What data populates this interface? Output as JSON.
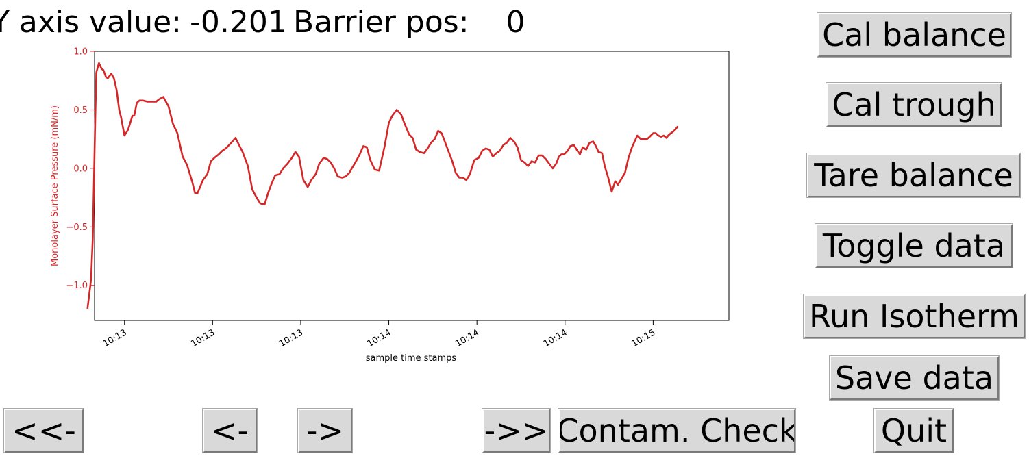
{
  "header": {
    "y_axis_label": "Y axis value:",
    "y_axis_value": "-0.201",
    "barrier_label": "Barrier pos:",
    "barrier_value": "0"
  },
  "buttons": {
    "cal_balance": "Cal balance",
    "cal_trough": "Cal trough",
    "tare_balance": "Tare balance",
    "toggle_data": "Toggle data",
    "run_isotherm": "Run Isotherm",
    "save_data": "Save data",
    "quit": "Quit",
    "first": "<<-",
    "prev": "<-",
    "next": "->",
    "last": "->>",
    "contam_check": "Contam. Check"
  },
  "colors": {
    "series": "#d62728",
    "button_bg": "#d9d9d9"
  },
  "chart_data": {
    "type": "line",
    "xlabel": "sample time stamps",
    "ylabel": "Monolayer Surface Pressure (mN/m)",
    "ylim": [
      -1.3,
      1.0
    ],
    "yticks": [
      1.0,
      0.5,
      0.0,
      -0.5,
      -1.0
    ],
    "ytick_labels": [
      "1.0",
      "0.5",
      "0.0",
      "−0.5",
      "−1.0"
    ],
    "xlim": [
      -3.4,
      68.6
    ],
    "xticks": [
      0,
      10,
      20,
      30,
      40,
      50,
      60
    ],
    "xtick_labels": [
      "10:13",
      "10:13",
      "10:13",
      "10:14",
      "10:14",
      "10:14",
      "10:15"
    ],
    "grid": false,
    "series": [
      {
        "x": [
          -4.2,
          -3.8,
          -3.6,
          -3.3,
          -3.2,
          -2.9,
          -2.6,
          -2.4,
          -2.1,
          -1.9,
          -1.5,
          -1.2,
          -0.9,
          -0.6,
          -0.4,
          0,
          0.4,
          0.9,
          1.1,
          1.4,
          1.7,
          2.1,
          2.6,
          3.0,
          3.6,
          3.9,
          4.4,
          5.0,
          5.5,
          6.0,
          6.6,
          7.1,
          7.7,
          8.0,
          8.3,
          8.9,
          9.4,
          9.8,
          10.2,
          10.7,
          11.1,
          11.5,
          12.0,
          12.6,
          13.0,
          13.4,
          14.0,
          14.5,
          15.0,
          15.4,
          15.9,
          16.3,
          16.7,
          17.1,
          17.6,
          18.0,
          18.5,
          19.0,
          19.4,
          19.8,
          20.3,
          20.8,
          21.2,
          21.7,
          22.1,
          22.6,
          23.0,
          23.4,
          23.8,
          24.2,
          24.7,
          25.1,
          25.5,
          25.8,
          26.2,
          26.7,
          27.1,
          27.5,
          27.9,
          28.4,
          28.9,
          29.5,
          30.0,
          30.4,
          30.9,
          31.4,
          31.8,
          32.3,
          32.7,
          33.1,
          33.5,
          34.0,
          34.4,
          34.8,
          35.2,
          35.6,
          36.0,
          36.4,
          36.8,
          37.2,
          37.6,
          38.0,
          38.4,
          38.8,
          39.2,
          39.7,
          40.2,
          40.6,
          41.0,
          41.4,
          41.8,
          42.2,
          42.6,
          43.0,
          43.4,
          43.8,
          44.2,
          44.6,
          45.0,
          45.4,
          45.8,
          46.2,
          46.6,
          47.0,
          47.4,
          47.8,
          48.2,
          48.6,
          49.0,
          49.3,
          49.6,
          49.9,
          50.3,
          50.6,
          51.0,
          51.4,
          51.7,
          52.0,
          52.4,
          52.8,
          53.2,
          53.5,
          53.8,
          54.2,
          54.5,
          54.9,
          55.3,
          55.7,
          56.0,
          56.4,
          56.8,
          57.2,
          57.6,
          58.2,
          58.6,
          59.0,
          59.3,
          59.6,
          60.0,
          60.3,
          60.6,
          60.9,
          61.2,
          61.5,
          61.7,
          62.0,
          62.2,
          62.5,
          62.8
        ],
        "y": [
          -1.2,
          -0.95,
          -0.6,
          0.5,
          0.82,
          0.9,
          0.85,
          0.84,
          0.78,
          0.77,
          0.81,
          0.77,
          0.67,
          0.5,
          0.44,
          0.28,
          0.33,
          0.45,
          0.45,
          0.56,
          0.58,
          0.58,
          0.57,
          0.57,
          0.57,
          0.59,
          0.61,
          0.53,
          0.38,
          0.3,
          0.1,
          0.03,
          -0.12,
          -0.21,
          -0.21,
          -0.1,
          -0.05,
          0.06,
          0.09,
          0.12,
          0.15,
          0.17,
          0.21,
          0.26,
          0.2,
          0.14,
          0.02,
          -0.18,
          -0.25,
          -0.3,
          -0.31,
          -0.21,
          -0.13,
          -0.06,
          -0.05,
          0.0,
          0.04,
          0.09,
          0.14,
          0.1,
          -0.1,
          -0.16,
          -0.1,
          -0.05,
          0.04,
          0.09,
          0.08,
          0.05,
          0.0,
          -0.07,
          -0.08,
          -0.07,
          -0.04,
          0.0,
          0.05,
          0.12,
          0.19,
          0.18,
          0.07,
          -0.01,
          -0.02,
          0.18,
          0.39,
          0.45,
          0.5,
          0.46,
          0.38,
          0.29,
          0.26,
          0.16,
          0.14,
          0.13,
          0.17,
          0.22,
          0.25,
          0.32,
          0.3,
          0.22,
          0.14,
          0.06,
          -0.04,
          -0.08,
          -0.08,
          -0.1,
          -0.05,
          0.07,
          0.09,
          0.15,
          0.17,
          0.16,
          0.1,
          0.13,
          0.15,
          0.2,
          0.22,
          0.26,
          0.23,
          0.18,
          0.07,
          0.05,
          0.02,
          0.06,
          0.05,
          0.11,
          0.11,
          0.08,
          0.04,
          0.0,
          0.04,
          0.1,
          0.12,
          0.12,
          0.15,
          0.19,
          0.2,
          0.15,
          0.12,
          0.18,
          0.16,
          0.22,
          0.23,
          0.19,
          0.14,
          0.13,
          0.02,
          -0.08,
          -0.2,
          -0.11,
          -0.14,
          -0.09,
          -0.04,
          0.09,
          0.18,
          0.28,
          0.25,
          0.25,
          0.25,
          0.27,
          0.3,
          0.3,
          0.28,
          0.27,
          0.28,
          0.26,
          0.28,
          0.3,
          0.31,
          0.33,
          0.36
        ]
      }
    ]
  }
}
